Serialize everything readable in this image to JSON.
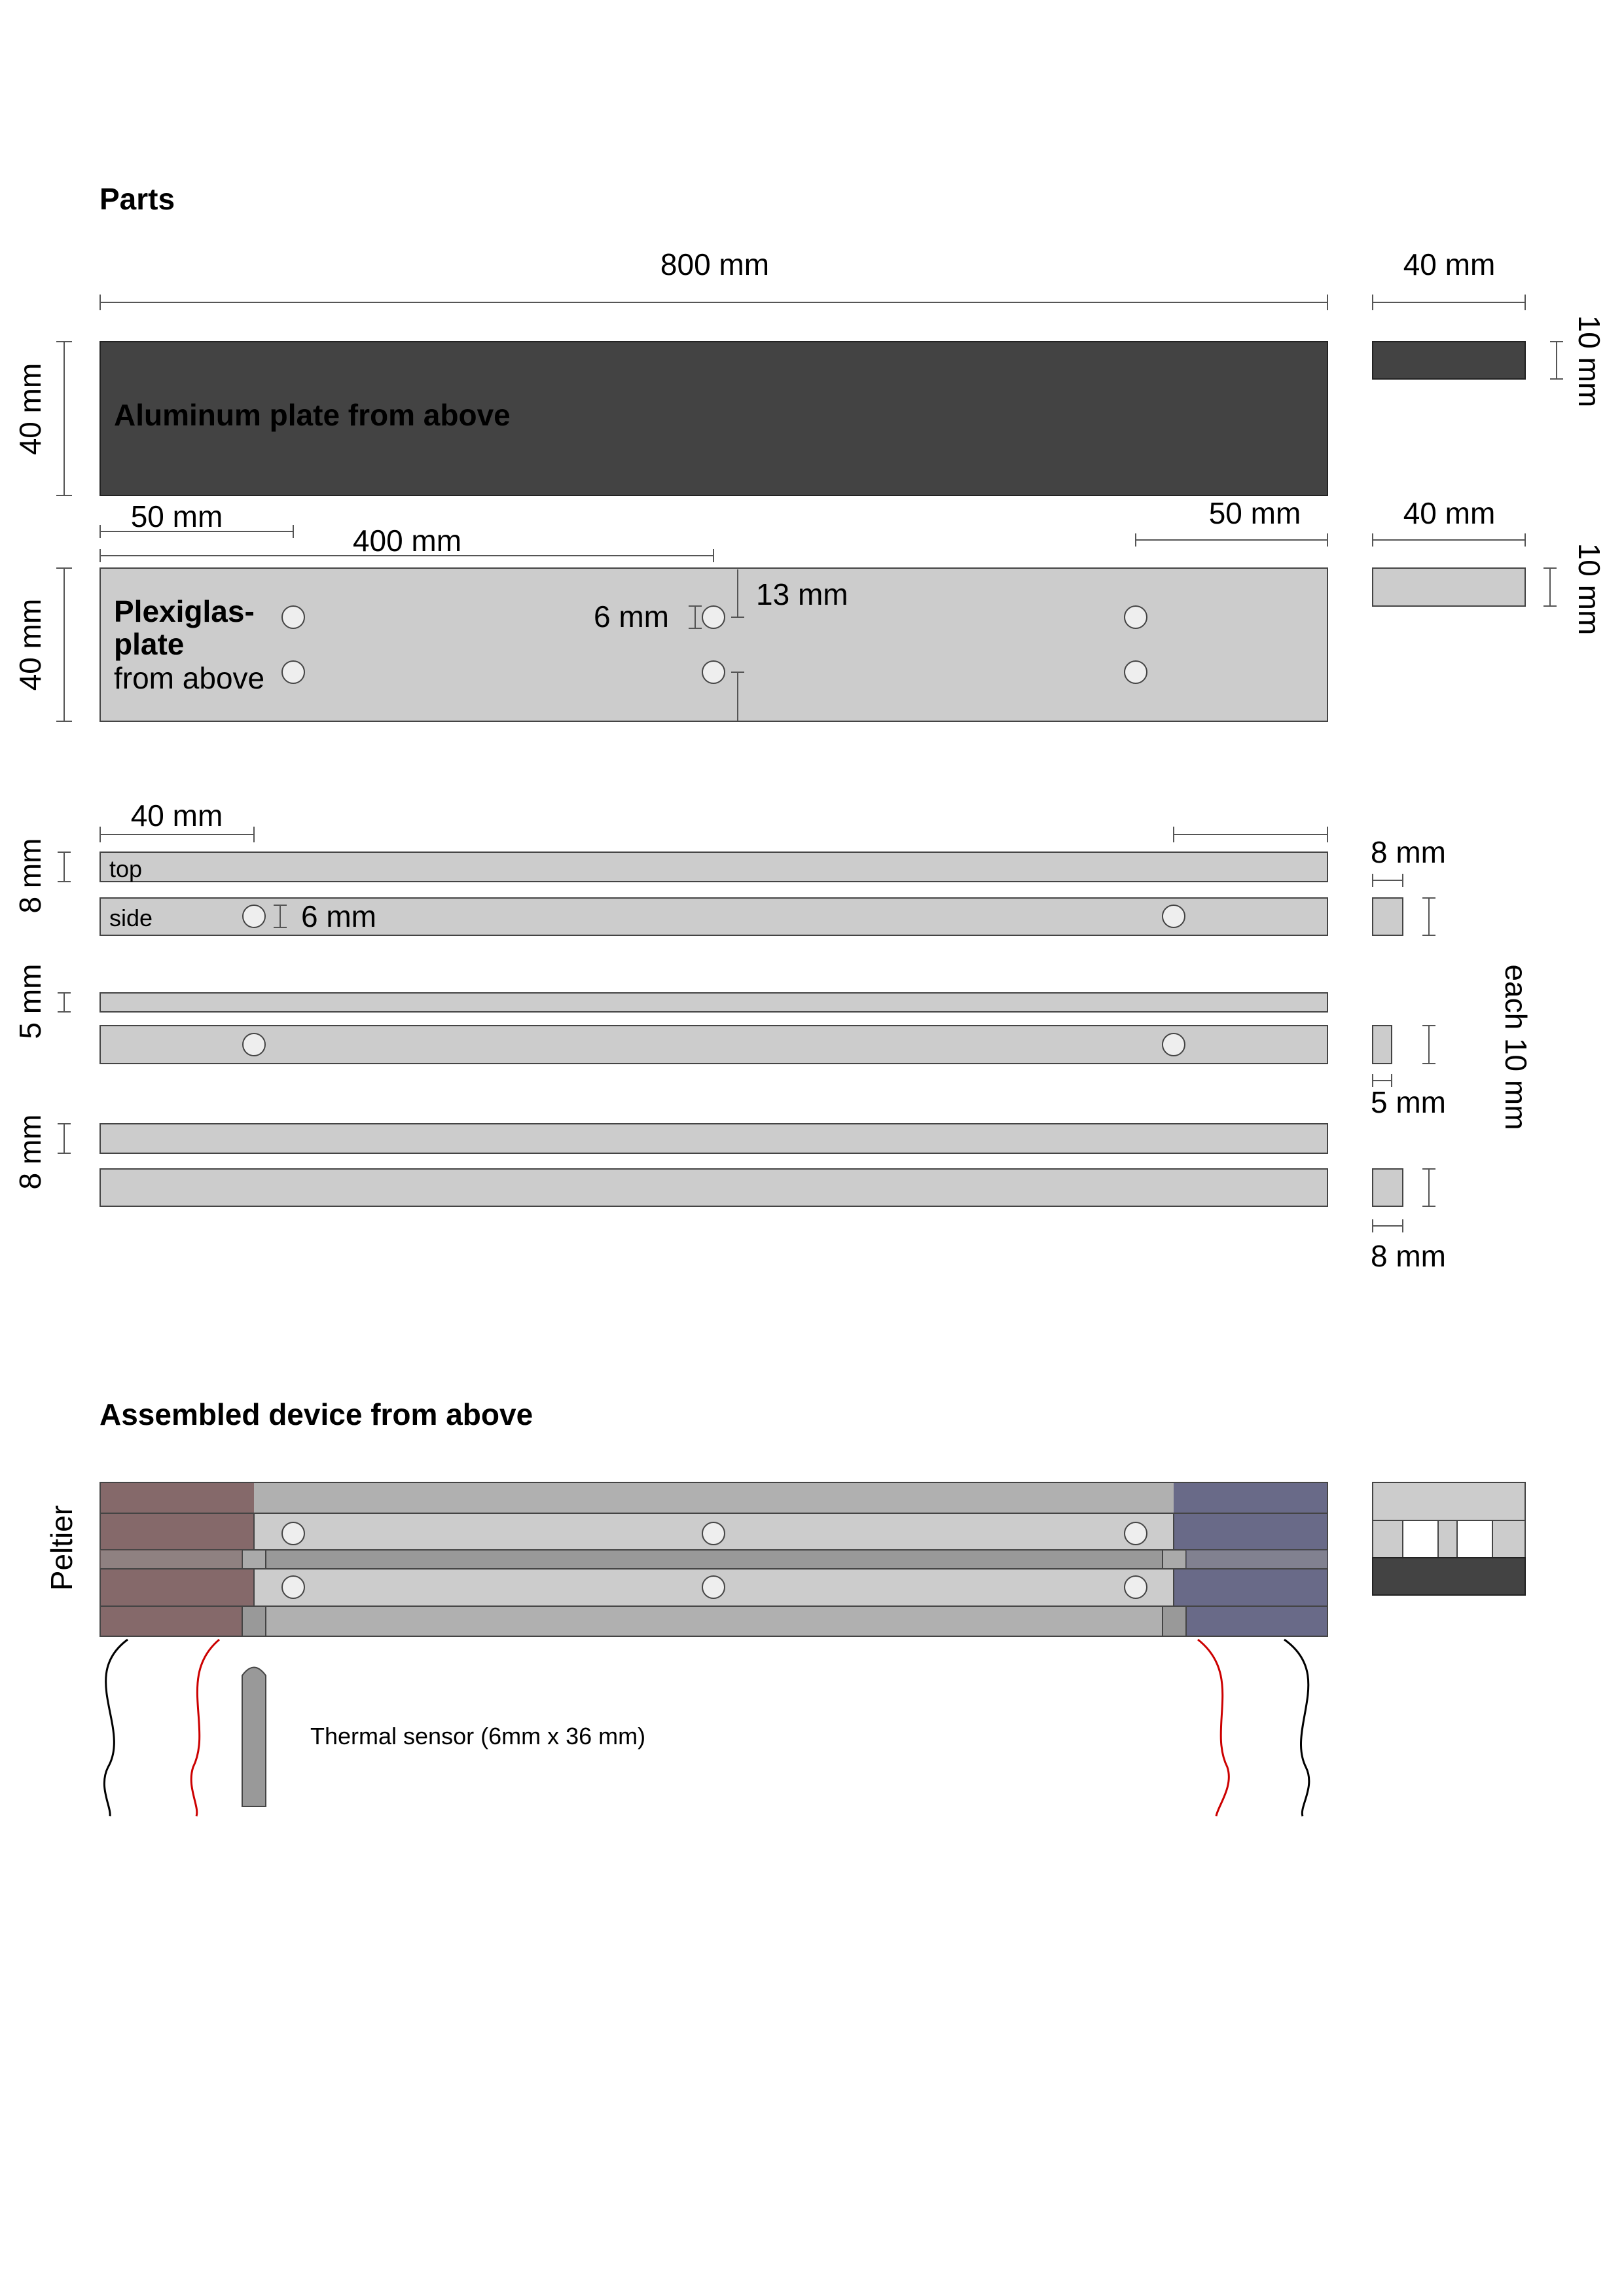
{
  "parts_heading": "Parts",
  "assembled_heading": "Assembled device from above",
  "colors": {
    "aluminum": "#434343",
    "plexi": "#cccccc",
    "assembled_frame": "#b0b0b0",
    "peltier_warm": "#85696a",
    "peltier_cold": "#696a88",
    "wire_red": "#cc0000",
    "wire_black": "#000000"
  },
  "aluminum": {
    "length_label": "800 mm",
    "width_label": "40 mm",
    "cross_width_label": "40 mm",
    "thickness_label": "10 mm",
    "title": "Aluminum plate from above"
  },
  "plexiglas": {
    "title_line1": "Plexiglas-",
    "title_line2": "plate",
    "title_line3": "from above",
    "offset_left_label": "50 mm",
    "offset_center_label": "400 mm",
    "offset_right_label": "50 mm",
    "hole_label": "6 mm",
    "hole_spacing_label": "13 mm",
    "width_label": "40 mm",
    "cross_width_label": "40 mm",
    "thickness_label": "10 mm"
  },
  "strips": {
    "offset_label": "40 mm",
    "top_label": "top",
    "side_label": "side",
    "hole_label": "6 mm",
    "group1_label": "8 mm",
    "group2_label": "5 mm",
    "group3_label": "8 mm",
    "cross1_label": "8 mm",
    "cross2_label": "5 mm",
    "cross3_label": "8 mm",
    "each_label": "each 10 mm"
  },
  "assembled": {
    "peltier_label": "Peltier",
    "sensor_label": "Thermal sensor (6mm x 36 mm)"
  }
}
